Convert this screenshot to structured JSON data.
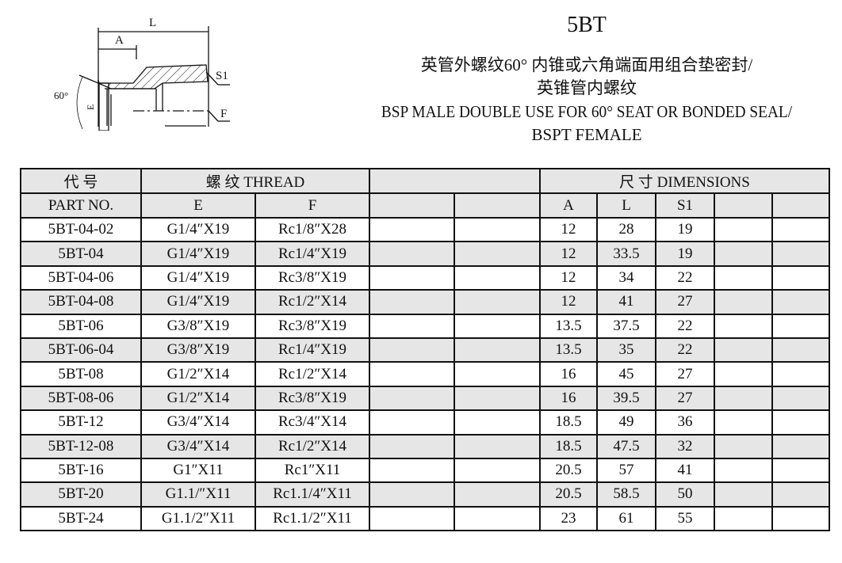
{
  "header": {
    "model": "5BT",
    "subtitle_cn_1": "英管外螺纹60° 内锥或六角端面用组合垫密封/",
    "subtitle_cn_2": "英锥管内螺纹",
    "subtitle_en_1": "BSP MALE DOUBLE USE FOR 60° SEAT OR BONDED SEAL/",
    "subtitle_en_2": "BSPT FEMALE"
  },
  "drawing": {
    "labels": {
      "L": "L",
      "A": "A",
      "S1": "S1",
      "F": "F",
      "E": "E",
      "angle": "60°"
    }
  },
  "table": {
    "head": {
      "part_cn": "代 号",
      "part_en": "PART  NO.",
      "thread": "螺 纹  THREAD",
      "dimensions": "尺 寸   DIMENSIONS",
      "E": "E",
      "F": "F",
      "A": "A",
      "L": "L",
      "S1": "S1"
    },
    "rows": [
      [
        "5BT-04-02",
        "G1/4″X19",
        "Rc1/8″X28",
        "12",
        "28",
        "19"
      ],
      [
        "5BT-04",
        "G1/4″X19",
        "Rc1/4″X19",
        "12",
        "33.5",
        "19"
      ],
      [
        "5BT-04-06",
        "G1/4″X19",
        "Rc3/8″X19",
        "12",
        "34",
        "22"
      ],
      [
        "5BT-04-08",
        "G1/4″X19",
        "Rc1/2″X14",
        "12",
        "41",
        "27"
      ],
      [
        "5BT-06",
        "G3/8″X19",
        "Rc3/8″X19",
        "13.5",
        "37.5",
        "22"
      ],
      [
        "5BT-06-04",
        "G3/8″X19",
        "Rc1/4″X19",
        "13.5",
        "35",
        "22"
      ],
      [
        "5BT-08",
        "G1/2″X14",
        "Rc1/2″X14",
        "16",
        "45",
        "27"
      ],
      [
        "5BT-08-06",
        "G1/2″X14",
        "Rc3/8″X19",
        "16",
        "39.5",
        "27"
      ],
      [
        "5BT-12",
        "G3/4″X14",
        "Rc3/4″X14",
        "18.5",
        "49",
        "36"
      ],
      [
        "5BT-12-08",
        "G3/4″X14",
        "Rc1/2″X14",
        "18.5",
        "47.5",
        "32"
      ],
      [
        "5BT-16",
        "G1″X11",
        "Rc1″X11",
        "20.5",
        "57",
        "41"
      ],
      [
        "5BT-20",
        "G1.1/″X11",
        "Rc1.1/4″X11",
        "20.5",
        "58.5",
        "50"
      ],
      [
        "5BT-24",
        "G1.1/2″X11",
        "Rc1.1/2″X11",
        "23",
        "61",
        "55"
      ]
    ]
  }
}
